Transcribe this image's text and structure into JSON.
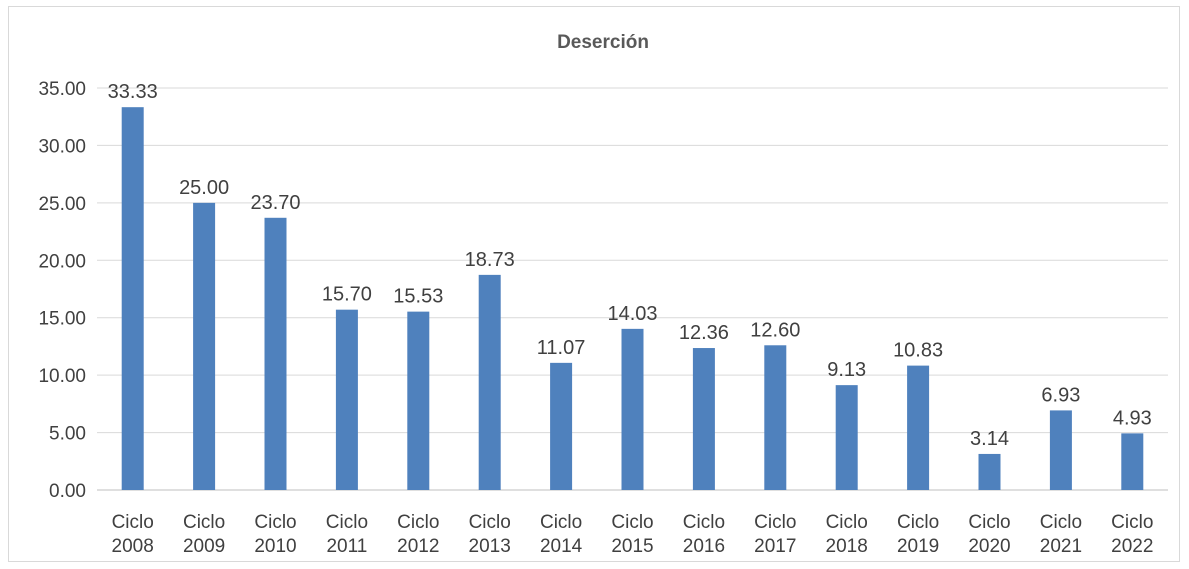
{
  "chart_data": {
    "type": "bar",
    "title": "Deserción",
    "xlabel": "",
    "ylabel": "",
    "ylim": [
      0,
      35
    ],
    "yticks": [
      "0.00",
      "5.00",
      "10.00",
      "15.00",
      "20.00",
      "25.00",
      "30.00",
      "35.00"
    ],
    "grid": true,
    "legend": "none",
    "bar_color": "#4f81bd",
    "categories": [
      [
        "Ciclo",
        "2008"
      ],
      [
        "Ciclo",
        "2009"
      ],
      [
        "Ciclo",
        "2010"
      ],
      [
        "Ciclo",
        "2011"
      ],
      [
        "Ciclo",
        "2012"
      ],
      [
        "Ciclo",
        "2013"
      ],
      [
        "Ciclo",
        "2014"
      ],
      [
        "Ciclo",
        "2015"
      ],
      [
        "Ciclo",
        "2016"
      ],
      [
        "Ciclo",
        "2017"
      ],
      [
        "Ciclo",
        "2018"
      ],
      [
        "Ciclo",
        "2019"
      ],
      [
        "Ciclo",
        "2020"
      ],
      [
        "Ciclo",
        "2021"
      ],
      [
        "Ciclo",
        "2022"
      ]
    ],
    "values": [
      33.33,
      25.0,
      23.7,
      15.7,
      15.53,
      18.73,
      11.07,
      14.03,
      12.36,
      12.6,
      9.13,
      10.83,
      3.14,
      6.93,
      4.93
    ],
    "data_labels": [
      "33.33",
      "25.00",
      "23.70",
      "15.70",
      "15.53",
      "18.73",
      "11.07",
      "14.03",
      "12.36",
      "12.60",
      "9.13",
      "10.83",
      "3.14",
      "6.93",
      "4.93"
    ]
  }
}
